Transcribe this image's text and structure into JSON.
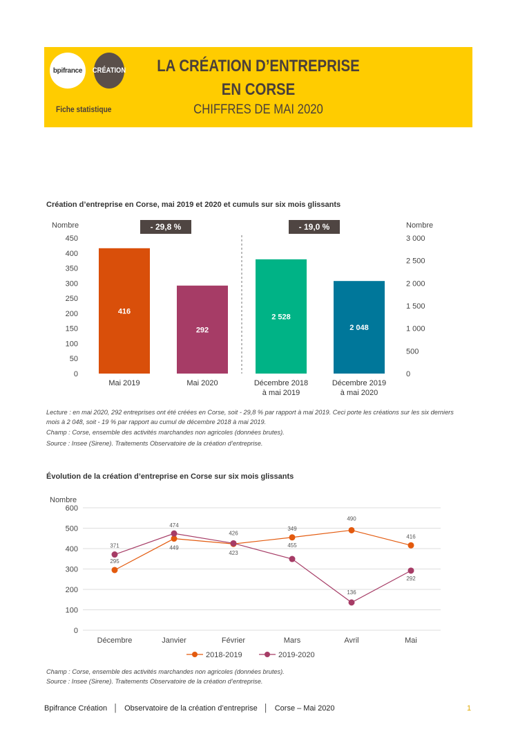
{
  "header": {
    "logo_bpi": "bpifrance",
    "logo_creation": "CRÉATION",
    "label": "Fiche statistique",
    "title_line1": "LA CRÉATION D’ENTREPRISE",
    "title_line2": "EN CORSE",
    "subtitle": "CHIFFRES DE MAI 2020",
    "bg_color": "#FFCC00"
  },
  "chart1": {
    "title": "Création d’entreprise en Corse, mai 2019 et 2020 et cumuls sur six mois glissants",
    "notes": [
      "Lecture : en mai 2020, 292 entreprises ont été créées en Corse, soit - 29,8 % par rapport à mai 2019. Ceci porte les créations sur les six derniers mois à 2 048, soit - 19 % par rapport au cumul de décembre 2018 à mai 2019.",
      "Champ : Corse, ensemble des activités marchandes non agricoles (données brutes).",
      "Source : Insee (Sirene). Traitements Observatoire de la création d’entreprise."
    ]
  },
  "chart2": {
    "title": "Évolution de la création d’entreprise en Corse sur six mois glissants",
    "notes": [
      "Champ : Corse, ensemble des activités marchandes non agricoles (données brutes).",
      "Source : Insee (Sirene). Traitements Observatoire de la création d’entreprise."
    ]
  },
  "chart_data": [
    {
      "type": "bar",
      "categories": [
        [
          "Mai 2019"
        ],
        [
          "Mai 2020"
        ],
        [
          "Décembre 2018",
          "à mai 2019"
        ],
        [
          "Décembre 2019",
          "à mai 2020"
        ]
      ],
      "values": [
        416,
        292,
        2528,
        2048
      ],
      "value_labels": [
        "416",
        "292",
        "2 528",
        "2 048"
      ],
      "axis": [
        "left",
        "left",
        "right",
        "right"
      ],
      "colors": [
        "#D94F0A",
        "#A63C66",
        "#00B386",
        "#00779A"
      ],
      "ylabel_left": "Nombre",
      "ylabel_right": "Nombre",
      "ylim_left": [
        0,
        450
      ],
      "ylim_right": [
        0,
        3000
      ],
      "yticks_left": [
        "0",
        "50",
        "100",
        "150",
        "200",
        "250",
        "300",
        "350",
        "400",
        "450"
      ],
      "yticks_right": [
        "0",
        "500",
        "1 000",
        "1 500",
        "2 000",
        "2 500",
        "3 000"
      ],
      "annotations": [
        "- 29,8 %",
        "- 19,0 %"
      ]
    },
    {
      "type": "line",
      "categories": [
        "Décembre",
        "Janvier",
        "Février",
        "Mars",
        "Avril",
        "Mai"
      ],
      "ylabel": "Nombre",
      "ylim": [
        0,
        600
      ],
      "yticks": [
        "0",
        "100",
        "200",
        "300",
        "400",
        "500",
        "600"
      ],
      "grid": true,
      "legend": "bottom",
      "series": [
        {
          "name": "2018-2019",
          "values": [
            295,
            449,
            423,
            455,
            490,
            416
          ],
          "color": "#E35A0E"
        },
        {
          "name": "2019-2020",
          "values": [
            371,
            474,
            426,
            349,
            136,
            292
          ],
          "color": "#A63C66"
        }
      ]
    }
  ],
  "footer": {
    "org": "Bpifrance Création",
    "obs": "Observatoire de la création d’entreprise",
    "region": "Corse – Mai 2020",
    "page": "1"
  }
}
